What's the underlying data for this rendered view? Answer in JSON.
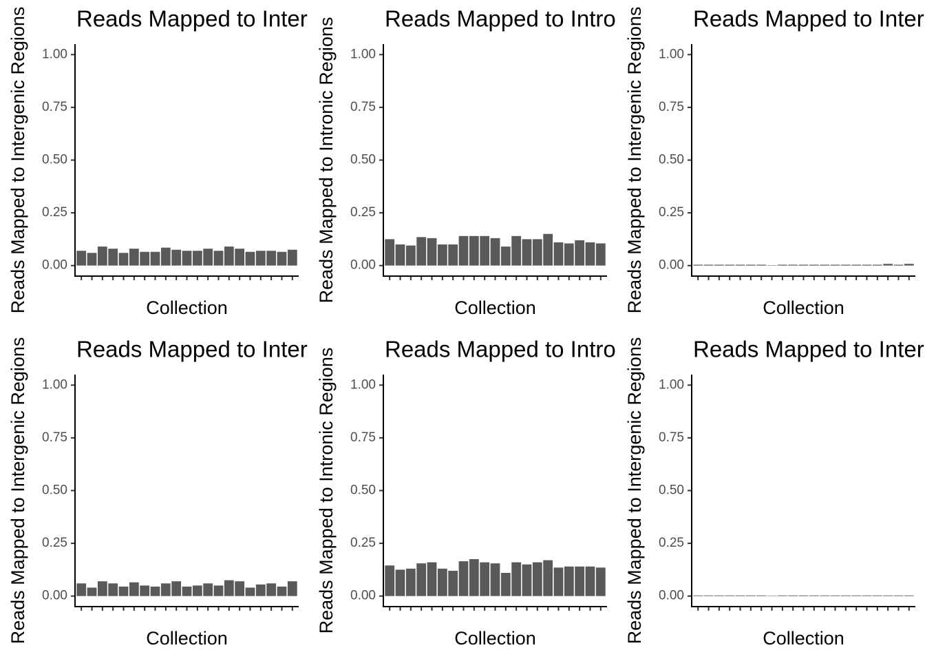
{
  "chart_data": [
    {
      "type": "bar",
      "title": "Reads Mapped to Intergenic Regions",
      "xlabel": "Collection",
      "ylabel": "Reads Mapped to Intergenic Regions",
      "color": "#595959",
      "categories": [
        null,
        null,
        null,
        null,
        null,
        null,
        null,
        null,
        null,
        null,
        null,
        null,
        null,
        null,
        null,
        null,
        null,
        null,
        null,
        null,
        null
      ],
      "values": [
        0.07,
        0.06,
        0.09,
        0.08,
        0.06,
        0.08,
        0.065,
        0.065,
        0.085,
        0.075,
        0.07,
        0.07,
        0.08,
        0.07,
        0.09,
        0.08,
        0.065,
        0.07,
        0.07,
        0.065,
        0.075
      ],
      "ylim": [
        -0.05,
        1.05
      ],
      "yticks": [
        {
          "value": 0,
          "label": "0.00"
        },
        {
          "value": 0.25,
          "label": "0.25"
        },
        {
          "value": 0.5,
          "label": "0.50"
        },
        {
          "value": 0.75,
          "label": "0.75"
        },
        {
          "value": 1,
          "label": "1.00"
        }
      ]
    },
    {
      "type": "bar",
      "title": "Reads Mapped to Intronic Regions",
      "xlabel": "Collection",
      "ylabel": "Reads Mapped to Intronic Regions",
      "color": "#595959",
      "categories": [
        null,
        null,
        null,
        null,
        null,
        null,
        null,
        null,
        null,
        null,
        null,
        null,
        null,
        null,
        null,
        null,
        null,
        null,
        null,
        null,
        null
      ],
      "values": [
        0.125,
        0.1,
        0.095,
        0.135,
        0.13,
        0.1,
        0.1,
        0.14,
        0.14,
        0.14,
        0.13,
        0.09,
        0.14,
        0.125,
        0.125,
        0.15,
        0.11,
        0.105,
        0.12,
        0.11,
        0.105
      ],
      "ylim": [
        -0.05,
        1.05
      ],
      "yticks": [
        {
          "value": 0,
          "label": "0.00"
        },
        {
          "value": 0.25,
          "label": "0.25"
        },
        {
          "value": 0.5,
          "label": "0.50"
        },
        {
          "value": 0.75,
          "label": "0.75"
        },
        {
          "value": 1,
          "label": "1.00"
        }
      ]
    },
    {
      "type": "bar",
      "title": "Reads Mapped to Intergenic Regions",
      "xlabel": "Collection",
      "ylabel": "Reads Mapped to Intergenic Regions",
      "color": "#595959",
      "categories": [
        null,
        null,
        null,
        null,
        null,
        null,
        null,
        null,
        null,
        null,
        null,
        null,
        null,
        null,
        null,
        null,
        null,
        null,
        null,
        null,
        null
      ],
      "values": [
        0.004,
        0.004,
        0.004,
        0.004,
        0.004,
        0.004,
        0.004,
        0.001,
        0.004,
        0.004,
        0.004,
        0.004,
        0.004,
        0.004,
        0.004,
        0.004,
        0.004,
        0.004,
        0.008,
        0.004,
        0.008
      ],
      "ylim": [
        -0.05,
        1.05
      ],
      "yticks": [
        {
          "value": 0,
          "label": "0.00"
        },
        {
          "value": 0.25,
          "label": "0.25"
        },
        {
          "value": 0.5,
          "label": "0.50"
        },
        {
          "value": 0.75,
          "label": "0.75"
        },
        {
          "value": 1,
          "label": "1.00"
        }
      ]
    },
    {
      "type": "bar",
      "title": "Reads Mapped to Intergenic Regions",
      "xlabel": "Collection",
      "ylabel": "Reads Mapped to Intergenic Regions",
      "color": "#595959",
      "categories": [
        null,
        null,
        null,
        null,
        null,
        null,
        null,
        null,
        null,
        null,
        null,
        null,
        null,
        null,
        null,
        null,
        null,
        null,
        null,
        null,
        null
      ],
      "values": [
        0.06,
        0.04,
        0.07,
        0.06,
        0.045,
        0.065,
        0.05,
        0.045,
        0.06,
        0.07,
        0.045,
        0.05,
        0.06,
        0.05,
        0.075,
        0.07,
        0.04,
        0.055,
        0.06,
        0.045,
        0.07
      ],
      "ylim": [
        -0.05,
        1.05
      ],
      "yticks": [
        {
          "value": 0,
          "label": "0.00"
        },
        {
          "value": 0.25,
          "label": "0.25"
        },
        {
          "value": 0.5,
          "label": "0.50"
        },
        {
          "value": 0.75,
          "label": "0.75"
        },
        {
          "value": 1,
          "label": "1.00"
        }
      ]
    },
    {
      "type": "bar",
      "title": "Reads Mapped to Intronic Regions",
      "xlabel": "Collection",
      "ylabel": "Reads Mapped to Intronic Regions",
      "color": "#595959",
      "categories": [
        null,
        null,
        null,
        null,
        null,
        null,
        null,
        null,
        null,
        null,
        null,
        null,
        null,
        null,
        null,
        null,
        null,
        null,
        null,
        null,
        null
      ],
      "values": [
        0.145,
        0.125,
        0.13,
        0.155,
        0.16,
        0.13,
        0.12,
        0.165,
        0.175,
        0.16,
        0.155,
        0.11,
        0.16,
        0.15,
        0.16,
        0.17,
        0.135,
        0.14,
        0.14,
        0.14,
        0.135
      ],
      "ylim": [
        -0.05,
        1.05
      ],
      "yticks": [
        {
          "value": 0,
          "label": "0.00"
        },
        {
          "value": 0.25,
          "label": "0.25"
        },
        {
          "value": 0.5,
          "label": "0.50"
        },
        {
          "value": 0.75,
          "label": "0.75"
        },
        {
          "value": 1,
          "label": "1.00"
        }
      ]
    },
    {
      "type": "bar",
      "title": "Reads Mapped to Intergenic Regions",
      "xlabel": "Collection",
      "ylabel": "Reads Mapped to Intergenic Regions",
      "color": "#595959",
      "categories": [
        null,
        null,
        null,
        null,
        null,
        null,
        null,
        null,
        null,
        null,
        null,
        null,
        null,
        null,
        null,
        null,
        null,
        null,
        null,
        null,
        null
      ],
      "values": [
        0.003,
        0.003,
        0.003,
        0.003,
        0.003,
        0.003,
        0.003,
        0.001,
        0.003,
        0.003,
        0.003,
        0.003,
        0.003,
        0.003,
        0.003,
        0.003,
        0.003,
        0.003,
        0.003,
        0.003,
        0.003
      ],
      "ylim": [
        -0.05,
        1.05
      ],
      "yticks": [
        {
          "value": 0,
          "label": "0.00"
        },
        {
          "value": 0.25,
          "label": "0.25"
        },
        {
          "value": 0.5,
          "label": "0.50"
        },
        {
          "value": 0.75,
          "label": "0.75"
        },
        {
          "value": 1,
          "label": "1.00"
        }
      ]
    }
  ]
}
